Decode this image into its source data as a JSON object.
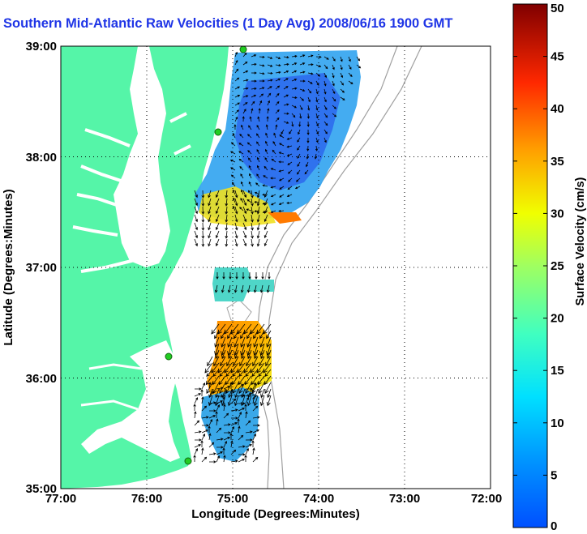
{
  "title": "Southern Mid-Atlantic Raw Velocities (1 Day Avg) 2008/06/16 1900 GMT",
  "x_axis": {
    "label": "Longitude (Degrees:Minutes)",
    "ticks": [
      "77:00",
      "76:00",
      "75:00",
      "74:00",
      "73:00",
      "72:00"
    ]
  },
  "y_axis": {
    "label": "Latitude (Degrees:Minutes)",
    "ticks": [
      "39:00",
      "38:00",
      "37:00",
      "36:00",
      "35:00"
    ]
  },
  "colorbar": {
    "label": "Surface Velocity (cm/s)",
    "ticks": [
      "50",
      "45",
      "40",
      "35",
      "30",
      "25",
      "20",
      "15",
      "10",
      "5",
      "0"
    ],
    "range": [
      0,
      50
    ],
    "colormap": "jet"
  },
  "colors": {
    "land": "#55f5a8",
    "title": "#1f35e6",
    "bathymetry": "#a0a0a0",
    "station": "#22cc22"
  },
  "grid": "dotted",
  "extent": {
    "lon": [
      -77,
      -72
    ],
    "lat": [
      35,
      39
    ]
  }
}
